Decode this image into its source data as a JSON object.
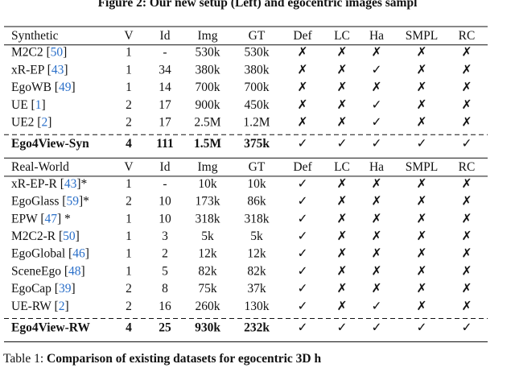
{
  "figure_caption": "Figure 2: Our new setup (Left) and egocentric images sampl",
  "table": {
    "sections": [
      {
        "header": [
          "Synthetic",
          "V",
          "Id",
          "Img",
          "GT",
          "Def",
          "LC",
          "Ha",
          "SMPL",
          "RC"
        ],
        "rows": [
          [
            {
              "text": "M2C2 [",
              "cite": "50",
              "rest": "]"
            },
            "1",
            "-",
            "530k",
            "530k",
            "✗",
            "✗",
            "✗",
            "✗",
            "✗"
          ],
          [
            {
              "text": "xR-EP [",
              "cite": "43",
              "rest": "]"
            },
            "1",
            "34",
            "380k",
            "380k",
            "✗",
            "✗",
            "✓",
            "✗",
            "✗"
          ],
          [
            {
              "text": "EgoWB [",
              "cite": "49",
              "rest": "]"
            },
            "1",
            "14",
            "700k",
            "700k",
            "✗",
            "✗",
            "✗",
            "✗",
            "✗"
          ],
          [
            {
              "text": "UE [",
              "cite": "1",
              "rest": "]"
            },
            "2",
            "17",
            "900k",
            "450k",
            "✗",
            "✗",
            "✓",
            "✗",
            "✗"
          ],
          [
            {
              "text": "UE2 [",
              "cite": "2",
              "rest": "]"
            },
            "2",
            "17",
            "2.5M",
            "1.2M",
            "✗",
            "✗",
            "✓",
            "✗",
            "✗"
          ]
        ],
        "summary": [
          {
            "text": "Ego4View-Syn"
          },
          "4",
          "111",
          "1.5M",
          "375k",
          "✓",
          "✓",
          "✓",
          "✓",
          "✓"
        ]
      },
      {
        "header": [
          "Real-World",
          "V",
          "Id",
          "Img",
          "GT",
          "Def",
          "LC",
          "Ha",
          "SMPL",
          "RC"
        ],
        "rows": [
          [
            {
              "text": "xR-EP-R [",
              "cite": "43",
              "rest": "]*"
            },
            "1",
            "-",
            "10k",
            "10k",
            "✓",
            "✗",
            "✗",
            "✗",
            "✗"
          ],
          [
            {
              "text": "EgoGlass [",
              "cite": "59",
              "rest": "]*"
            },
            "2",
            "10",
            "173k",
            "86k",
            "✓",
            "✗",
            "✗",
            "✗",
            "✗"
          ],
          [
            {
              "text": "EPW [",
              "cite": "47",
              "rest": "] *"
            },
            "1",
            "10",
            "318k",
            "318k",
            "✓",
            "✗",
            "✗",
            "✗",
            "✗"
          ],
          [
            {
              "text": "M2C2-R [",
              "cite": "50",
              "rest": "]"
            },
            "1",
            "3",
            "5k",
            "5k",
            "✓",
            "✗",
            "✗",
            "✗",
            "✗"
          ],
          [
            {
              "text": "EgoGlobal [",
              "cite": "46",
              "rest": "]"
            },
            "1",
            "2",
            "12k",
            "12k",
            "✓",
            "✗",
            "✗",
            "✗",
            "✗"
          ],
          [
            {
              "text": "SceneEgo [",
              "cite": "48",
              "rest": "]"
            },
            "1",
            "5",
            "82k",
            "82k",
            "✓",
            "✗",
            "✗",
            "✗",
            "✗"
          ],
          [
            {
              "text": "EgoCap [",
              "cite": "39",
              "rest": "]"
            },
            "2",
            "8",
            "75k",
            "37k",
            "✓",
            "✗",
            "✗",
            "✗",
            "✗"
          ],
          [
            {
              "text": "UE-RW [",
              "cite": "2",
              "rest": "]"
            },
            "2",
            "16",
            "260k",
            "130k",
            "✓",
            "✗",
            "✓",
            "✗",
            "✗"
          ]
        ],
        "summary": [
          {
            "text": "Ego4View-RW"
          },
          "4",
          "25",
          "930k",
          "232k",
          "✓",
          "✓",
          "✓",
          "✓",
          "✓"
        ]
      }
    ]
  },
  "table_caption": {
    "label": "Table 1: ",
    "text": "Comparison of existing datasets for egocentric 3D h"
  }
}
